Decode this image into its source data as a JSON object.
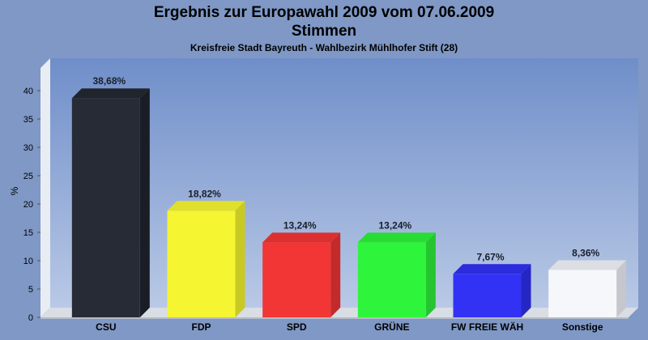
{
  "header": {
    "title": "Ergebnis zur Europawahl 2009 vom 07.06.2009",
    "subtitle": "Stimmen",
    "caption": "Kreisfreie Stadt Bayreuth - Wahlbezirk Mühlhofer Stift (28)"
  },
  "chart_data": {
    "type": "bar",
    "title": "Ergebnis zur Europawahl 2009 vom 07.06.2009",
    "subtitle": "Stimmen",
    "caption": "Kreisfreie Stadt Bayreuth - Wahlbezirk Mühlhofer Stift (28)",
    "xlabel": "",
    "ylabel": "%",
    "ylim": [
      0,
      44
    ],
    "yticks": [
      0,
      5,
      10,
      15,
      20,
      25,
      30,
      35,
      40
    ],
    "grid": false,
    "categories": [
      "CSU",
      "FDP",
      "SPD",
      "GRÜNE",
      "FW FREIE WÄH",
      "Sonstige"
    ],
    "values": [
      38.68,
      18.82,
      13.24,
      13.24,
      7.67,
      8.36
    ],
    "value_labels": [
      "38,68%",
      "18,82%",
      "13,24%",
      "13,24%",
      "7,67%",
      "8,36%"
    ],
    "colors": [
      "#262b36",
      "#f5f532",
      "#f23535",
      "#2ef53c",
      "#3232f5",
      "#f5f7fb"
    ],
    "side_colors": [
      "#1a1d25",
      "#c9c926",
      "#c42a2a",
      "#25c530",
      "#2626c4",
      "#c5c7cc"
    ],
    "top_colors": [
      "#20242d",
      "#e0e02c",
      "#dc3030",
      "#28dc34",
      "#2c2cdc",
      "#dcdee3"
    ]
  }
}
